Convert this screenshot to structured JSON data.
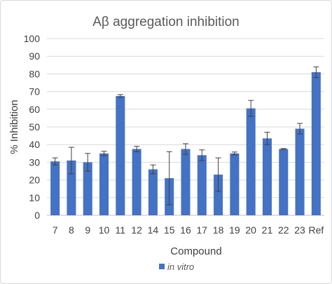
{
  "chart_data": {
    "type": "bar",
    "title": "Aβ aggregation inhibition",
    "xlabel": "Compound",
    "ylabel": "% Inhibition",
    "ylim": [
      0,
      100
    ],
    "yticks": [
      0,
      10,
      20,
      30,
      40,
      50,
      60,
      70,
      80,
      90,
      100
    ],
    "grid": true,
    "legend_position": "bottom",
    "categories": [
      "7",
      "8",
      "9",
      "10",
      "11",
      "12",
      "14",
      "15",
      "16",
      "17",
      "18",
      "19",
      "20",
      "21",
      "22",
      "23",
      "Ref"
    ],
    "series": [
      {
        "name": "in vitro",
        "color": "#4472C4",
        "values": [
          30.5,
          31,
          30,
          35,
          67.5,
          37.5,
          26,
          21,
          37.5,
          34,
          23,
          35,
          60.5,
          43.5,
          37.5,
          49,
          81
        ],
        "error": [
          2,
          7.5,
          5,
          1.2,
          0.8,
          1.5,
          2.5,
          15,
          3,
          3,
          9.5,
          0.8,
          4.5,
          3.5,
          0.3,
          3,
          3
        ]
      }
    ]
  }
}
